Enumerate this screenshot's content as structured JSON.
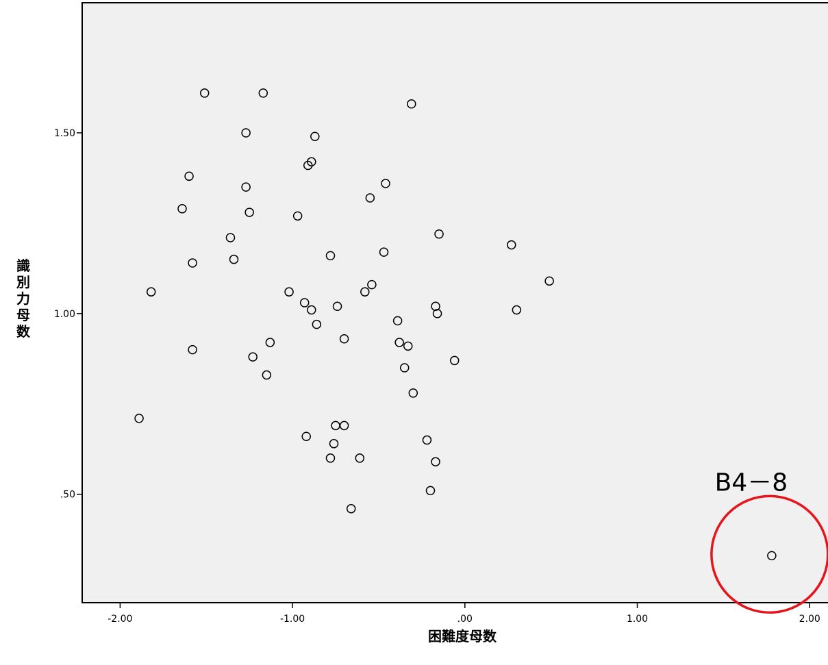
{
  "chart_data": {
    "type": "scatter",
    "xlabel": "困難度母数",
    "ylabel": "識別力母数",
    "xlim": [
      -2.22,
      2.15
    ],
    "ylim": [
      0.2,
      1.86
    ],
    "x_ticks": [
      {
        "value": -2,
        "label": "-2.00"
      },
      {
        "value": -1,
        "label": "-1.00"
      },
      {
        "value": 0,
        "label": ".00"
      },
      {
        "value": 1,
        "label": "1.00"
      },
      {
        "value": 2,
        "label": "2.00"
      }
    ],
    "y_ticks": [
      {
        "value": 0.5,
        "label": ".50"
      },
      {
        "value": 1.0,
        "label": "1.00"
      },
      {
        "value": 1.5,
        "label": "1.50"
      }
    ],
    "grid": false,
    "colors": {
      "plot_bg": "#f0f0f0",
      "marker": "#000000",
      "annotation": "#e8141c"
    },
    "points": [
      {
        "x": -1.51,
        "y": 1.61
      },
      {
        "x": -1.17,
        "y": 1.61
      },
      {
        "x": -0.31,
        "y": 1.58
      },
      {
        "x": -1.27,
        "y": 1.5
      },
      {
        "x": -0.87,
        "y": 1.49
      },
      {
        "x": -0.89,
        "y": 1.42
      },
      {
        "x": -0.91,
        "y": 1.41
      },
      {
        "x": -1.6,
        "y": 1.38
      },
      {
        "x": -0.46,
        "y": 1.36
      },
      {
        "x": -1.27,
        "y": 1.35
      },
      {
        "x": -0.55,
        "y": 1.32
      },
      {
        "x": -1.64,
        "y": 1.29
      },
      {
        "x": -1.25,
        "y": 1.28
      },
      {
        "x": -0.97,
        "y": 1.27
      },
      {
        "x": -0.15,
        "y": 1.22
      },
      {
        "x": -1.36,
        "y": 1.21
      },
      {
        "x": 0.27,
        "y": 1.19
      },
      {
        "x": -0.78,
        "y": 1.16
      },
      {
        "x": -0.47,
        "y": 1.17
      },
      {
        "x": -1.34,
        "y": 1.15
      },
      {
        "x": -1.58,
        "y": 1.14
      },
      {
        "x": 0.49,
        "y": 1.09
      },
      {
        "x": -0.54,
        "y": 1.08
      },
      {
        "x": -1.82,
        "y": 1.06
      },
      {
        "x": -1.02,
        "y": 1.06
      },
      {
        "x": -0.58,
        "y": 1.06
      },
      {
        "x": -0.93,
        "y": 1.03
      },
      {
        "x": -0.74,
        "y": 1.02
      },
      {
        "x": -0.17,
        "y": 1.02
      },
      {
        "x": -0.89,
        "y": 1.01
      },
      {
        "x": 0.3,
        "y": 1.01
      },
      {
        "x": -0.16,
        "y": 1.0
      },
      {
        "x": -0.39,
        "y": 0.98
      },
      {
        "x": -0.86,
        "y": 0.97
      },
      {
        "x": -0.7,
        "y": 0.93
      },
      {
        "x": -1.13,
        "y": 0.92
      },
      {
        "x": -0.38,
        "y": 0.92
      },
      {
        "x": -0.33,
        "y": 0.91
      },
      {
        "x": -1.58,
        "y": 0.9
      },
      {
        "x": -1.23,
        "y": 0.88
      },
      {
        "x": -0.06,
        "y": 0.87
      },
      {
        "x": -0.35,
        "y": 0.85
      },
      {
        "x": -1.15,
        "y": 0.83
      },
      {
        "x": -0.3,
        "y": 0.78
      },
      {
        "x": -1.89,
        "y": 0.71
      },
      {
        "x": -0.75,
        "y": 0.69
      },
      {
        "x": -0.7,
        "y": 0.69
      },
      {
        "x": -0.92,
        "y": 0.66
      },
      {
        "x": -0.22,
        "y": 0.65
      },
      {
        "x": -0.76,
        "y": 0.64
      },
      {
        "x": -0.78,
        "y": 0.6
      },
      {
        "x": -0.61,
        "y": 0.6
      },
      {
        "x": -0.17,
        "y": 0.59
      },
      {
        "x": -0.2,
        "y": 0.51
      },
      {
        "x": -0.66,
        "y": 0.46
      },
      {
        "x": 1.78,
        "y": 0.33
      }
    ],
    "annotations": [
      {
        "label": "B4－8",
        "x": 1.78,
        "y": 0.33,
        "marker": "red-circle"
      }
    ]
  }
}
